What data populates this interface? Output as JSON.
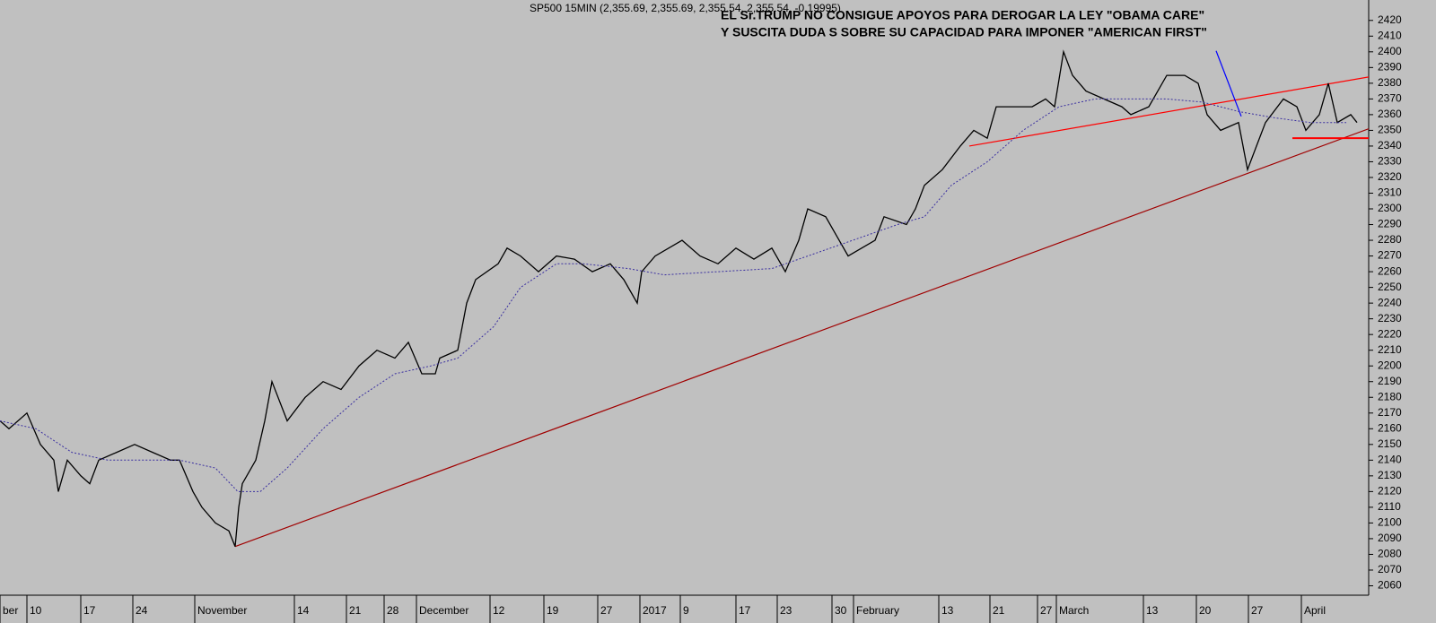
{
  "chart_data": {
    "type": "line",
    "title": "SP500 15MIN (2,355.69, 2,355.69, 2,355.54, 2,355.54, -0.19995)",
    "annotation": [
      "EL Sr.TRUMP  NO CONSIGUE APOYOS PARA DEROGAR  LA LEY \"OBAMA CARE\"",
      "Y SUSCITA DUDA S SOBRE SU CAPACIDAD PARA IMPONER \"AMERICAN FIRST\""
    ],
    "annotation_color": "#0000ff",
    "background": "#c0c0c0",
    "xlim": [
      0,
      1525
    ],
    "ylim": [
      2054,
      2433
    ],
    "xticks": [
      {
        "value": 0,
        "label": "ber"
      },
      {
        "value": 30,
        "label": "10"
      },
      {
        "value": 90,
        "label": "17"
      },
      {
        "value": 148,
        "label": "24"
      },
      {
        "value": 217,
        "label": "November"
      },
      {
        "value": 328,
        "label": "14"
      },
      {
        "value": 386,
        "label": "21"
      },
      {
        "value": 428,
        "label": "28"
      },
      {
        "value": 464,
        "label": "December"
      },
      {
        "value": 546,
        "label": "12"
      },
      {
        "value": 606,
        "label": "19"
      },
      {
        "value": 666,
        "label": "27"
      },
      {
        "value": 713,
        "label": "2017"
      },
      {
        "value": 758,
        "label": "9"
      },
      {
        "value": 820,
        "label": "17"
      },
      {
        "value": 866,
        "label": "23"
      },
      {
        "value": 927,
        "label": "30"
      },
      {
        "value": 951,
        "label": "February"
      },
      {
        "value": 1046,
        "label": "13"
      },
      {
        "value": 1103,
        "label": "21"
      },
      {
        "value": 1156,
        "label": "27"
      },
      {
        "value": 1177,
        "label": "March"
      },
      {
        "value": 1274,
        "label": "13"
      },
      {
        "value": 1333,
        "label": "20"
      },
      {
        "value": 1391,
        "label": "27"
      },
      {
        "value": 1450,
        "label": "April"
      }
    ],
    "yticks": [
      2060,
      2070,
      2080,
      2090,
      2100,
      2110,
      2120,
      2130,
      2140,
      2150,
      2160,
      2170,
      2180,
      2190,
      2200,
      2210,
      2220,
      2230,
      2240,
      2250,
      2260,
      2270,
      2280,
      2290,
      2300,
      2310,
      2320,
      2330,
      2340,
      2350,
      2360,
      2370,
      2380,
      2390,
      2400,
      2410,
      2420
    ],
    "series": [
      {
        "color": "#000000",
        "dash": false,
        "x": [
          0,
          10,
          30,
          45,
          60,
          65,
          75,
          90,
          100,
          110,
          130,
          150,
          170,
          190,
          200,
          215,
          225,
          240,
          255,
          262,
          266,
          270,
          285,
          295,
          303,
          320,
          340,
          360,
          380,
          400,
          420,
          440,
          455,
          470,
          485,
          490,
          510,
          520,
          530,
          555,
          565,
          580,
          600,
          620,
          640,
          660,
          680,
          695,
          710,
          715,
          730,
          760,
          780,
          800,
          820,
          840,
          860,
          875,
          890,
          900,
          920,
          930,
          945,
          960,
          975,
          985,
          1010,
          1020,
          1030,
          1050,
          1070,
          1085,
          1100,
          1110,
          1130,
          1150,
          1165,
          1175,
          1185,
          1195,
          1210,
          1230,
          1250,
          1260,
          1280,
          1300,
          1320,
          1335,
          1345,
          1360,
          1380,
          1390,
          1400,
          1410,
          1430,
          1445,
          1455,
          1470,
          1480,
          1490,
          1505,
          1512
        ],
        "values": [
          2165,
          2160,
          2170,
          2150,
          2140,
          2120,
          2140,
          2130,
          2125,
          2140,
          2145,
          2150,
          2145,
          2140,
          2140,
          2120,
          2110,
          2100,
          2095,
          2085,
          2110,
          2125,
          2140,
          2165,
          2190,
          2165,
          2180,
          2190,
          2185,
          2200,
          2210,
          2205,
          2215,
          2195,
          2195,
          2205,
          2210,
          2240,
          2255,
          2265,
          2275,
          2270,
          2260,
          2270,
          2268,
          2260,
          2265,
          2255,
          2240,
          2260,
          2270,
          2280,
          2270,
          2265,
          2275,
          2268,
          2275,
          2260,
          2280,
          2300,
          2295,
          2285,
          2270,
          2275,
          2280,
          2295,
          2290,
          2300,
          2315,
          2325,
          2340,
          2350,
          2345,
          2365,
          2365,
          2365,
          2370,
          2365,
          2400,
          2385,
          2375,
          2370,
          2365,
          2360,
          2365,
          2385,
          2385,
          2380,
          2360,
          2350,
          2355,
          2325,
          2340,
          2355,
          2370,
          2365,
          2350,
          2360,
          2380,
          2355,
          2360,
          2355
        ]
      },
      {
        "color": "#3a2fa0",
        "dash": true,
        "x": [
          0,
          40,
          80,
          120,
          150,
          200,
          240,
          265,
          290,
          320,
          360,
          400,
          440,
          480,
          510,
          550,
          580,
          620,
          650,
          700,
          740,
          800,
          860,
          900,
          950,
          1000,
          1030,
          1060,
          1100,
          1140,
          1180,
          1220,
          1260,
          1300,
          1340,
          1380,
          1420,
          1460,
          1500
        ],
        "values": [
          2165,
          2160,
          2145,
          2140,
          2140,
          2140,
          2135,
          2120,
          2120,
          2135,
          2160,
          2180,
          2195,
          2200,
          2205,
          2225,
          2250,
          2265,
          2265,
          2262,
          2258,
          2260,
          2262,
          2270,
          2280,
          2290,
          2295,
          2315,
          2330,
          2350,
          2365,
          2370,
          2370,
          2370,
          2368,
          2362,
          2358,
          2355,
          2355
        ]
      }
    ],
    "trendlines": [
      {
        "color": "#a00000",
        "x": [
          262,
          1525
        ],
        "y": [
          2085,
          2351
        ]
      },
      {
        "color": "#ff0000",
        "x": [
          1080,
          1525
        ],
        "y": [
          2340,
          2384
        ]
      },
      {
        "color": "#ff0000",
        "x": [
          1440,
          1525
        ],
        "y": [
          2345,
          2345
        ]
      },
      {
        "color": "#0000ff",
        "x": [
          1355,
          1383
        ],
        "y": [
          2400.6,
          2358.9
        ]
      }
    ]
  }
}
